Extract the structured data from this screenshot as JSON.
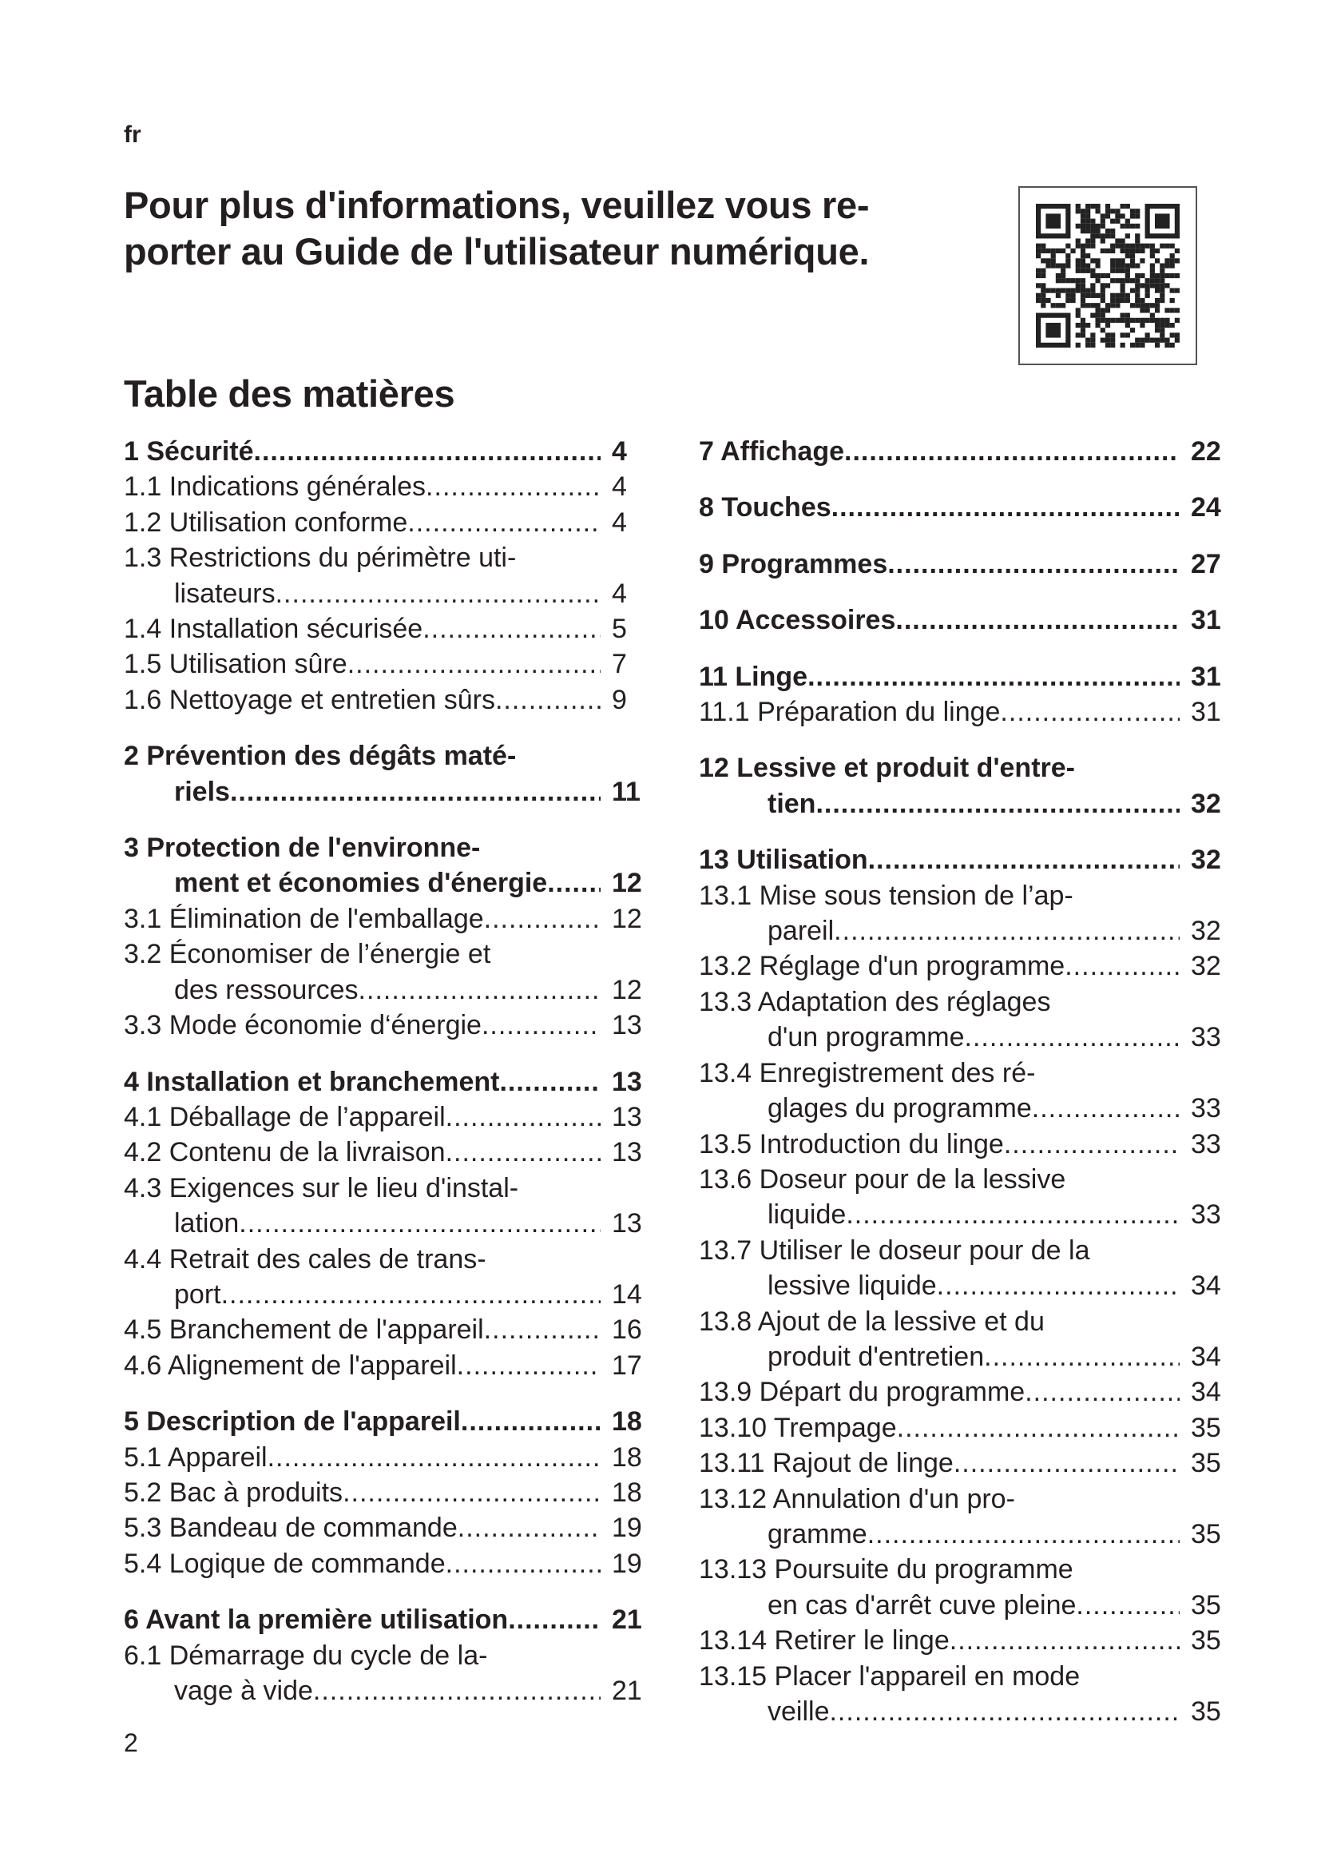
{
  "lang": "fr",
  "headline": "Pour plus d'informations, veuillez vous re-\nporter au Guide de l'utilisateur numérique.",
  "qr_icon": "qr-code",
  "toc_title": "Table des matières",
  "page_number": "2",
  "toc": {
    "left": [
      {
        "bold": true,
        "sec": true,
        "lines": [
          "1 Sécurité"
        ],
        "page": "4"
      },
      {
        "lines": [
          "1.1 Indications générales "
        ],
        "page": "4"
      },
      {
        "lines": [
          "1.2 Utilisation conforme"
        ],
        "page": "4"
      },
      {
        "lines": [
          "1.3 Restrictions du périmètre uti-",
          "lisateurs "
        ],
        "page": "4"
      },
      {
        "lines": [
          "1.4 Installation sécurisée"
        ],
        "page": "5"
      },
      {
        "lines": [
          "1.5 Utilisation sûre"
        ],
        "page": "7"
      },
      {
        "lines": [
          "1.6 Nettoyage et entretien sûrs "
        ],
        "page": "9"
      },
      {
        "bold": true,
        "sec": true,
        "lines": [
          "2 Prévention des dégâts maté-",
          "riels "
        ],
        "page": "11"
      },
      {
        "bold": true,
        "sec": true,
        "lines": [
          "3 Protection de l'environne-",
          "ment et économies d'énergie "
        ],
        "page": "12"
      },
      {
        "lines": [
          "3.1 Élimination de l'emballage "
        ],
        "page": "12"
      },
      {
        "lines": [
          "3.2 Économiser de l’énergie et",
          "des ressources"
        ],
        "page": "12"
      },
      {
        "lines": [
          "3.3 Mode économie d‘énergie "
        ],
        "page": "13"
      },
      {
        "bold": true,
        "sec": true,
        "lines": [
          "4 Installation et branchement"
        ],
        "page": "13"
      },
      {
        "lines": [
          "4.1 Déballage de l’appareil "
        ],
        "page": "13"
      },
      {
        "lines": [
          "4.2 Contenu de la livraison "
        ],
        "page": "13"
      },
      {
        "lines": [
          "4.3 Exigences sur le lieu d'instal-",
          "lation"
        ],
        "page": "13"
      },
      {
        "lines": [
          "4.4 Retrait des cales de trans-",
          "port "
        ],
        "page": "14"
      },
      {
        "lines": [
          "4.5 Branchement de l'appareil "
        ],
        "page": "16"
      },
      {
        "lines": [
          "4.6 Alignement de l'appareil"
        ],
        "page": "17"
      },
      {
        "bold": true,
        "sec": true,
        "lines": [
          "5 Description de l'appareil"
        ],
        "page": "18"
      },
      {
        "lines": [
          "5.1 Appareil "
        ],
        "page": "18"
      },
      {
        "lines": [
          "5.2 Bac à produits"
        ],
        "page": "18"
      },
      {
        "lines": [
          "5.3 Bandeau de commande "
        ],
        "page": "19"
      },
      {
        "lines": [
          "5.4 Logique de commande"
        ],
        "page": "19"
      },
      {
        "bold": true,
        "sec": true,
        "lines": [
          "6 Avant la première utilisation "
        ],
        "page": "21"
      },
      {
        "lines": [
          "6.1 Démarrage du cycle de la-",
          "vage à vide"
        ],
        "page": "21"
      }
    ],
    "right": [
      {
        "bold": true,
        "sec": true,
        "lines": [
          "7 Affichage "
        ],
        "page": "22"
      },
      {
        "bold": true,
        "sec": true,
        "lines": [
          "8 Touches "
        ],
        "page": "24"
      },
      {
        "bold": true,
        "sec": true,
        "lines": [
          "9 Programmes"
        ],
        "page": "27"
      },
      {
        "bold": true,
        "sec": true,
        "lines": [
          "10 Accessoires"
        ],
        "page": "31"
      },
      {
        "bold": true,
        "sec": true,
        "lines": [
          "11 Linge "
        ],
        "page": "31"
      },
      {
        "lines": [
          "11.1 Préparation du linge"
        ],
        "page": "31"
      },
      {
        "bold": true,
        "sec": true,
        "lines": [
          "12 Lessive et produit d'entre-",
          "tien "
        ],
        "page": "32"
      },
      {
        "bold": true,
        "sec": true,
        "lines": [
          "13 Utilisation "
        ],
        "page": "32"
      },
      {
        "lines": [
          "13.1 Mise sous tension de l’ap-",
          "pareil"
        ],
        "page": "32"
      },
      {
        "lines": [
          "13.2 Réglage d'un programme "
        ],
        "page": "32"
      },
      {
        "lines": [
          "13.3 Adaptation des réglages",
          "d'un programme"
        ],
        "page": "33"
      },
      {
        "lines": [
          "13.4 Enregistrement des ré-",
          "glages du programme "
        ],
        "page": "33"
      },
      {
        "lines": [
          "13.5 Introduction du linge "
        ],
        "page": "33"
      },
      {
        "lines": [
          "13.6 Doseur pour de la lessive",
          "liquide"
        ],
        "page": "33"
      },
      {
        "lines": [
          "13.7 Utiliser le doseur pour de la",
          "lessive liquide"
        ],
        "page": "34"
      },
      {
        "lines": [
          "13.8 Ajout de la lessive et du",
          "produit d'entretien "
        ],
        "page": "34"
      },
      {
        "lines": [
          "13.9 Départ du programme"
        ],
        "page": "34"
      },
      {
        "lines": [
          "13.10 Trempage "
        ],
        "page": "35"
      },
      {
        "lines": [
          "13.11 Rajout de linge "
        ],
        "page": "35"
      },
      {
        "lines": [
          "13.12 Annulation d'un pro-",
          "gramme "
        ],
        "page": "35"
      },
      {
        "lines": [
          "13.13 Poursuite du programme",
          "en cas d'arrêt cuve pleine"
        ],
        "page": "35"
      },
      {
        "lines": [
          "13.14 Retirer le linge "
        ],
        "page": "35"
      },
      {
        "lines": [
          "13.15 Placer l'appareil en mode",
          "veille "
        ],
        "page": "35"
      }
    ]
  }
}
